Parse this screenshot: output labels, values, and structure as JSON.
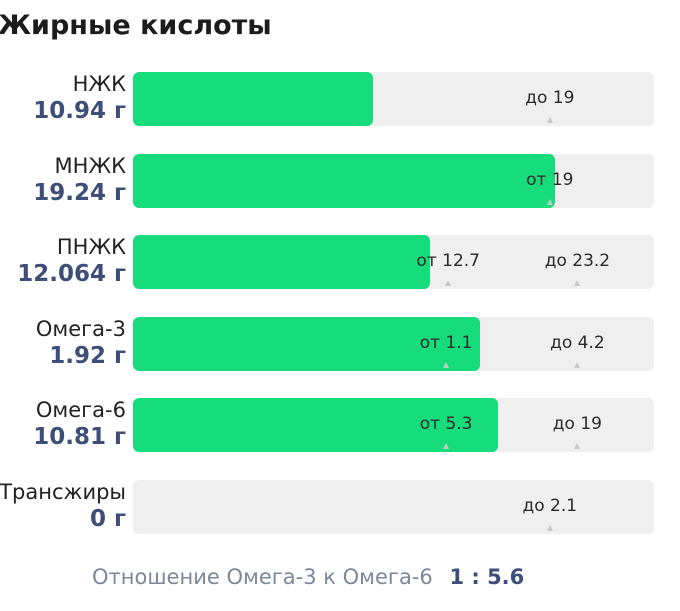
{
  "title": "Жирные кислоты",
  "rows": [
    {
      "name": "НЖК",
      "value": "10.94 г",
      "fill_pct": 46.1,
      "markers": [
        {
          "label": "до 19",
          "pos_pct": 80
        }
      ]
    },
    {
      "name": "МНЖК",
      "value": "19.24 г",
      "fill_pct": 81,
      "markers": [
        {
          "label": "от 19",
          "pos_pct": 80
        }
      ]
    },
    {
      "name": "ПНЖК",
      "value": "12.064 г",
      "fill_pct": 57,
      "markers": [
        {
          "label": "от 12.7",
          "pos_pct": 60.5
        },
        {
          "label": "до 23.2",
          "pos_pct": 85.3
        }
      ]
    },
    {
      "name": "Омега-3",
      "value": "1.92 г",
      "fill_pct": 66.6,
      "markers": [
        {
          "label": "от 1.1",
          "pos_pct": 60.1
        },
        {
          "label": "до 4.2",
          "pos_pct": 85.3
        }
      ]
    },
    {
      "name": "Омега-6",
      "value": "10.81 г",
      "fill_pct": 70,
      "markers": [
        {
          "label": "от 5.3",
          "pos_pct": 60.1
        },
        {
          "label": "до 19",
          "pos_pct": 85.3
        }
      ]
    },
    {
      "name": "Трансжиры",
      "value": "0 г",
      "fill_pct": 0,
      "markers": [
        {
          "label": "до 2.1",
          "pos_pct": 80
        }
      ]
    }
  ],
  "ratio": {
    "label": "Отношение Омега-3 к Омега-6",
    "value": "1 : 5.6"
  },
  "colors": {
    "fill": "#17dc7c",
    "track": "#efefef",
    "value_text": "#3d4f78",
    "ratio_label": "#7c879a"
  }
}
